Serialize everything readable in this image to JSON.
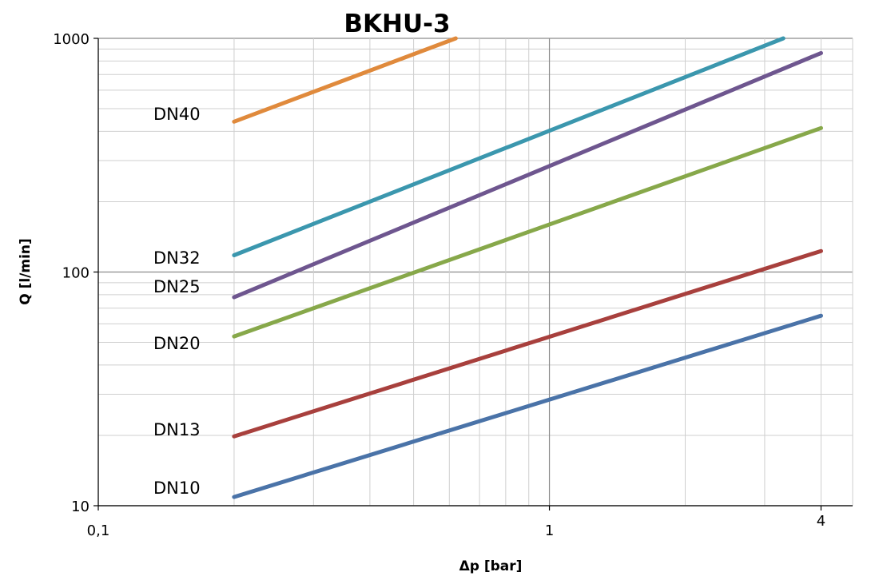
{
  "chart_data": {
    "type": "line",
    "title": "BKHU-3",
    "xlabel": "Δp [bar]",
    "ylabel": "Q [l/min]",
    "x_scale": "log",
    "y_scale": "log",
    "xlim": [
      0.1,
      4.7
    ],
    "ylim": [
      10,
      1000
    ],
    "x_ticks": [
      {
        "value": 0.1,
        "label": "0,1"
      },
      {
        "value": 1,
        "label": "1"
      },
      {
        "value": 4,
        "label": "4"
      }
    ],
    "y_ticks": [
      {
        "value": 10,
        "label": "10"
      },
      {
        "value": 100,
        "label": "100"
      },
      {
        "value": 1000,
        "label": "1000"
      }
    ],
    "grid": true,
    "legend": "none",
    "series": [
      {
        "name": "DN10",
        "color": "#4a73a8",
        "x": [
          0.2,
          4
        ],
        "y": [
          10.9,
          65
        ]
      },
      {
        "name": "DN13",
        "color": "#a8403d",
        "x": [
          0.2,
          4
        ],
        "y": [
          19.8,
          123
        ]
      },
      {
        "name": "DN20",
        "color": "#87a84a",
        "x": [
          0.2,
          4
        ],
        "y": [
          53,
          413
        ]
      },
      {
        "name": "DN25",
        "color": "#6e568f",
        "x": [
          0.2,
          4
        ],
        "y": [
          78,
          865
        ]
      },
      {
        "name": "DN32",
        "color": "#3b97ae",
        "x": [
          0.2,
          3.3
        ],
        "y": [
          118,
          1000
        ]
      },
      {
        "name": "DN40",
        "color": "#e08a3c",
        "x": [
          0.2,
          0.62
        ],
        "y": [
          440,
          1000
        ]
      }
    ]
  }
}
